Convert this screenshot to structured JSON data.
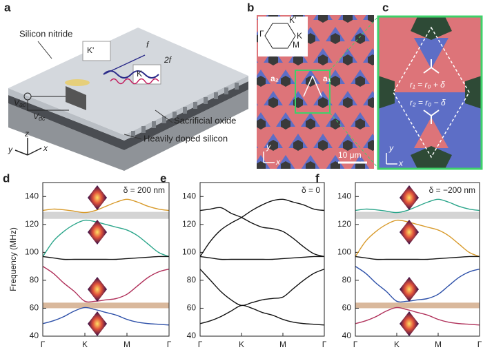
{
  "panels": {
    "a": {
      "letter": "a",
      "silicon_nitride": "Silicon nitride",
      "k_prime": "K'",
      "k": "K",
      "f": "f",
      "two_f": "2f",
      "vac": {
        "text": "V",
        "sub": "ac"
      },
      "vdc": {
        "text": "V",
        "sub": "dc"
      },
      "sacrificial_oxide": "Sacrificial oxide",
      "doped_silicon": "Heavily doped silicon",
      "axis_x": "x",
      "axis_y": "y",
      "axis_z": "z"
    },
    "b": {
      "letter": "b",
      "gamma": "Γ",
      "k_prime": "K'",
      "k": "K",
      "m": "M",
      "a2": "a₂",
      "a1": "a₁",
      "scale": "10 μm",
      "axis_x": "x",
      "axis_y": "y"
    },
    "c": {
      "letter": "c",
      "r1": "r₁ = r₀ + δ",
      "r2": "r₂ = r₀ − δ",
      "axis_x": "x",
      "axis_y": "y"
    }
  },
  "chart_data": [
    {
      "type": "line",
      "letter": "d",
      "annotation": "δ = 200 nm",
      "ylabel": "Frequency (MHz)",
      "x": [
        0,
        0.25,
        0.5,
        0.75,
        1,
        1.25,
        1.5,
        1.75,
        2,
        2.25,
        2.5,
        2.75,
        3
      ],
      "xlim": [
        0,
        3
      ],
      "xticks": [
        {
          "value": 0,
          "label": "Γ"
        },
        {
          "value": 1,
          "label": "K"
        },
        {
          "value": 2,
          "label": "M"
        },
        {
          "value": 3,
          "label": "Γ"
        }
      ],
      "ylim": [
        40,
        150
      ],
      "yticks": [
        40,
        60,
        80,
        100,
        120,
        140
      ],
      "shaded_ranges": [
        {
          "from": 124,
          "to": 129,
          "color": "#d4d4d4"
        },
        {
          "from": 60,
          "to": 64,
          "color": "#d9b89c"
        }
      ],
      "series": [
        {
          "color": "#d89a2a",
          "values": [
            130,
            131,
            130.5,
            129.5,
            128.5,
            130,
            133,
            136,
            138,
            136,
            133,
            131,
            130
          ]
        },
        {
          "color": "#2aa58a",
          "values": [
            97,
            108,
            115,
            120,
            123,
            122,
            120,
            118,
            116,
            112,
            106,
            100,
            97
          ]
        },
        {
          "color": "#111111",
          "values": [
            97,
            96,
            95,
            95,
            95,
            95,
            95,
            95,
            95.5,
            96,
            96.5,
            97,
            97
          ]
        },
        {
          "color": "#b0305a",
          "values": [
            90,
            85,
            78,
            72,
            65,
            65,
            66,
            67,
            70,
            76,
            82,
            86,
            88
          ]
        },
        {
          "color": "#2c4fa8",
          "values": [
            49,
            51,
            54,
            58,
            60.5,
            59,
            57,
            55,
            52,
            50,
            49,
            48.5,
            48
          ]
        }
      ]
    },
    {
      "type": "line",
      "letter": "e",
      "annotation": "δ = 0",
      "x": [
        0,
        0.25,
        0.5,
        0.75,
        1,
        1.25,
        1.5,
        1.75,
        2,
        2.25,
        2.5,
        2.75,
        3
      ],
      "xlim": [
        0,
        3
      ],
      "xticks": [
        {
          "value": 0,
          "label": "Γ"
        },
        {
          "value": 1,
          "label": "K"
        },
        {
          "value": 2,
          "label": "M"
        },
        {
          "value": 3,
          "label": "Γ"
        }
      ],
      "ylim": [
        40,
        150
      ],
      "yticks": [
        40,
        60,
        80,
        100,
        120,
        140
      ],
      "series": [
        {
          "color": "#111111",
          "values": [
            130,
            131,
            132,
            128,
            125,
            121,
            118,
            117,
            115,
            110,
            104,
            99,
            97
          ]
        },
        {
          "color": "#111111",
          "values": [
            97,
            108,
            116,
            121,
            125,
            130,
            134,
            137,
            138,
            136,
            134,
            131,
            130
          ]
        },
        {
          "color": "#111111",
          "values": [
            97,
            96,
            95,
            95,
            95,
            95,
            95,
            95,
            95.5,
            96,
            96.5,
            97,
            97
          ]
        },
        {
          "color": "#111111",
          "values": [
            88,
            80,
            72,
            66,
            62,
            64,
            66,
            67,
            68,
            74,
            80,
            85,
            88
          ]
        },
        {
          "color": "#111111",
          "values": [
            49,
            51,
            54,
            58,
            62,
            60,
            57,
            55,
            52,
            50,
            49,
            48.5,
            48
          ]
        }
      ]
    },
    {
      "type": "line",
      "letter": "f",
      "annotation": "δ = −200 nm",
      "x": [
        0,
        0.25,
        0.5,
        0.75,
        1,
        1.25,
        1.5,
        1.75,
        2,
        2.25,
        2.5,
        2.75,
        3
      ],
      "xlim": [
        0,
        3
      ],
      "xticks": [
        {
          "value": 0,
          "label": "Γ"
        },
        {
          "value": 1,
          "label": "K"
        },
        {
          "value": 2,
          "label": "M"
        },
        {
          "value": 3,
          "label": "Γ"
        }
      ],
      "ylim": [
        40,
        150
      ],
      "yticks": [
        40,
        60,
        80,
        100,
        120,
        140
      ],
      "shaded_ranges": [
        {
          "from": 124,
          "to": 129,
          "color": "#d4d4d4"
        },
        {
          "from": 60,
          "to": 64,
          "color": "#d9b89c"
        }
      ],
      "series": [
        {
          "color": "#2aa58a",
          "values": [
            130,
            131,
            130.5,
            129.5,
            128.5,
            130,
            133,
            136,
            138,
            136,
            133,
            131,
            130
          ]
        },
        {
          "color": "#d89a2a",
          "values": [
            97,
            108,
            115,
            120,
            123,
            122,
            120,
            118,
            116,
            112,
            106,
            100,
            97
          ]
        },
        {
          "color": "#111111",
          "values": [
            97,
            96,
            95,
            95,
            95,
            95,
            95,
            95,
            95.5,
            96,
            96.5,
            97,
            97
          ]
        },
        {
          "color": "#2c4fa8",
          "values": [
            90,
            85,
            78,
            72,
            65,
            65,
            66,
            67,
            70,
            76,
            82,
            86,
            88
          ]
        },
        {
          "color": "#b0305a",
          "values": [
            49,
            51,
            54,
            58,
            60.5,
            59,
            57,
            55,
            52,
            50,
            49,
            48.5,
            48
          ]
        }
      ]
    }
  ]
}
